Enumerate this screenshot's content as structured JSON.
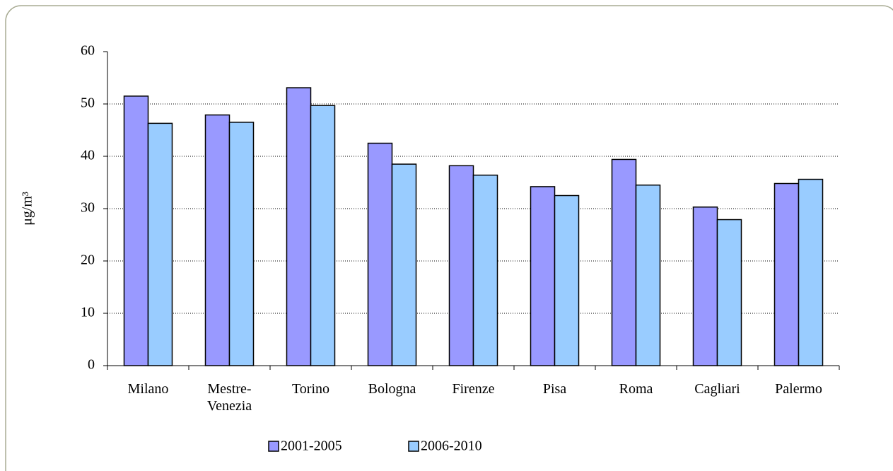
{
  "chart_data": {
    "type": "bar",
    "y_label": "μg/m³",
    "categories": [
      "Milano",
      "Mestre-Venezia",
      "Torino",
      "Bologna",
      "Firenze",
      "Pisa",
      "Roma",
      "Cagliari",
      "Palermo"
    ],
    "series": [
      {
        "name": "2001-2005",
        "color": "#9999ff",
        "values": [
          51.5,
          47.9,
          53.1,
          42.5,
          38.2,
          34.2,
          39.4,
          30.3,
          34.8
        ]
      },
      {
        "name": "2006-2010",
        "color": "#99ccff",
        "values": [
          46.3,
          46.5,
          49.7,
          38.5,
          36.4,
          32.5,
          34.5,
          27.9,
          35.6
        ]
      }
    ],
    "ylim": [
      0,
      60
    ],
    "yticks": [
      0,
      10,
      20,
      30,
      40,
      50,
      60
    ],
    "grid": true,
    "legend": "bottom"
  }
}
